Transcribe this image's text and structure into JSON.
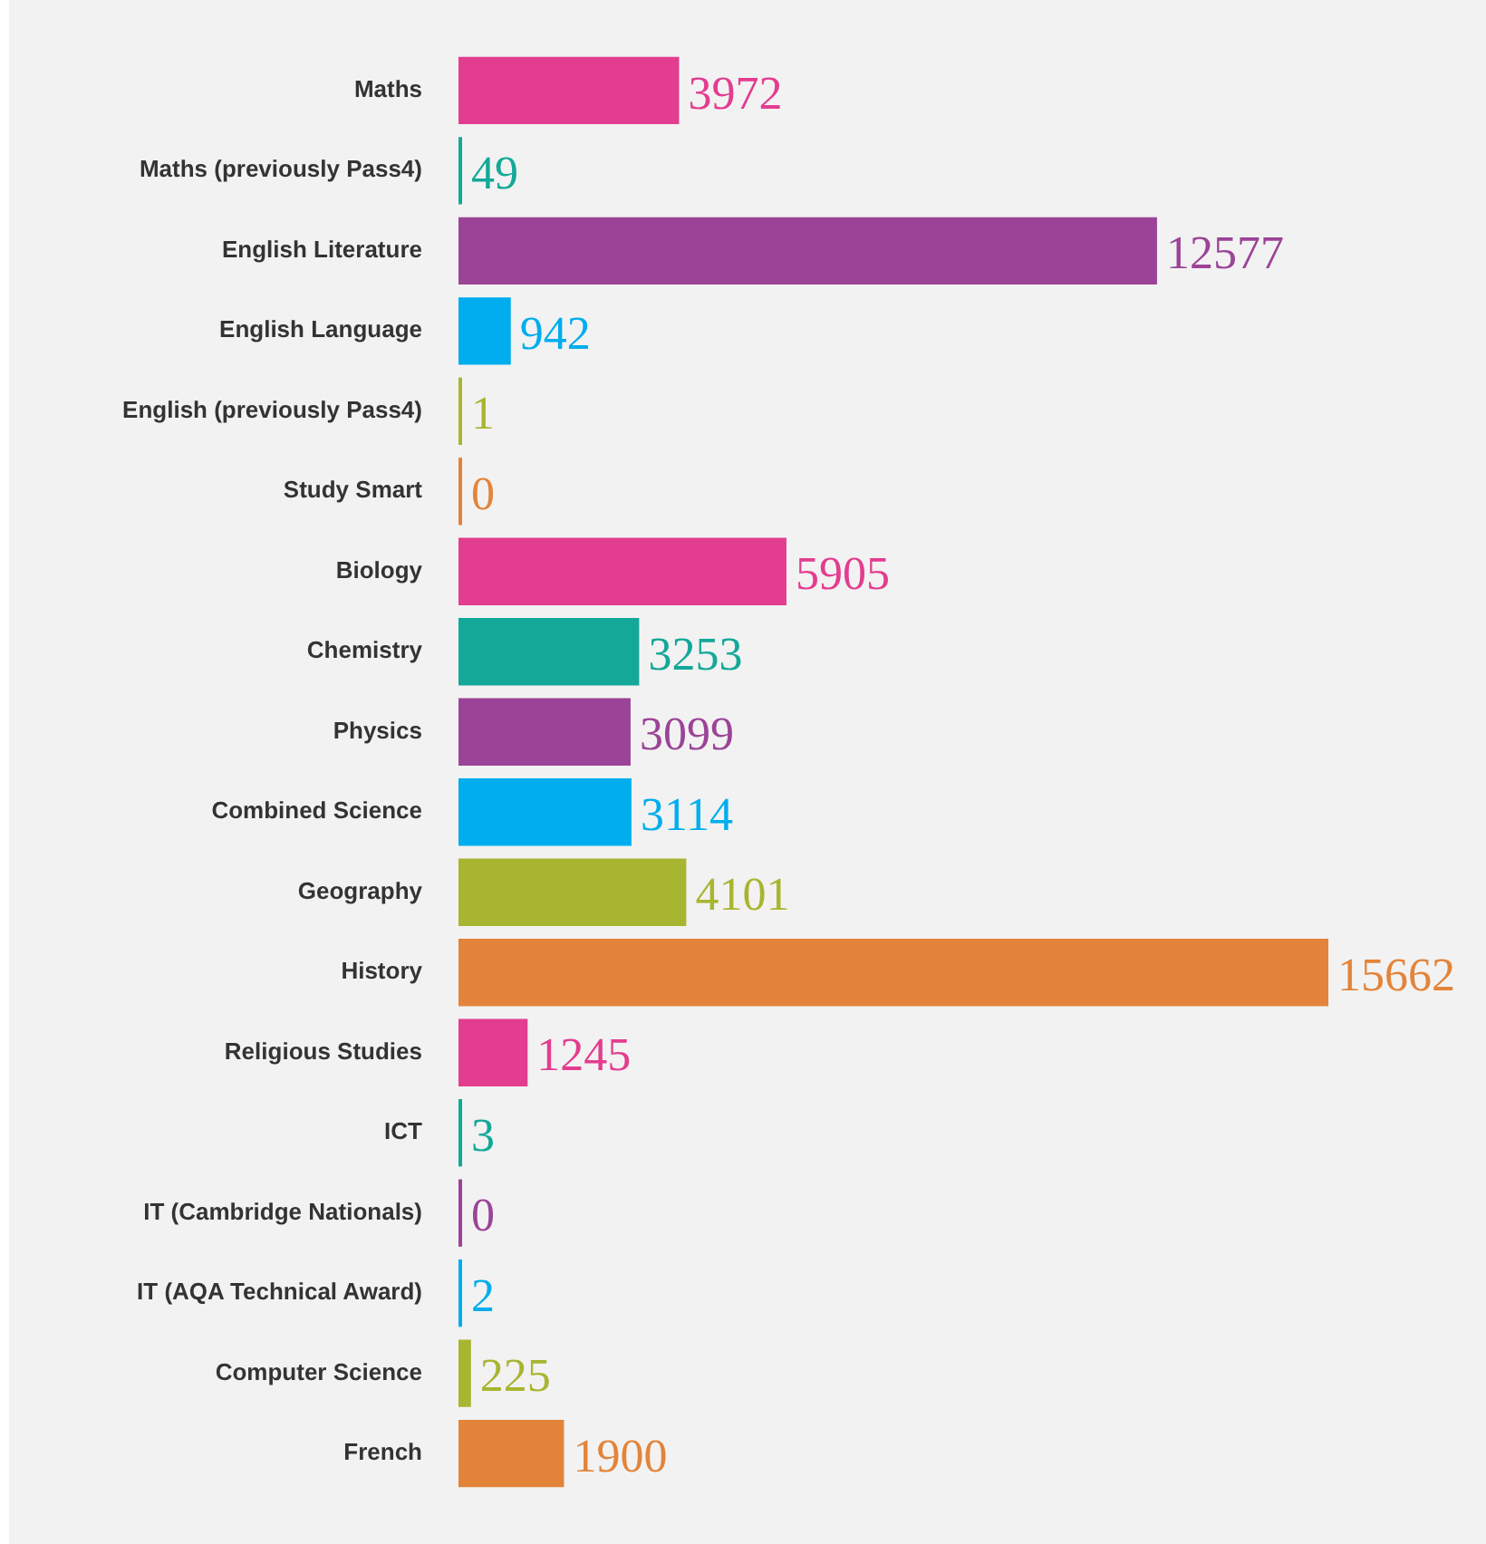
{
  "chart_data": {
    "type": "bar",
    "orientation": "horizontal",
    "data_labels": true,
    "legend": false,
    "categories": [
      "Maths",
      "Maths (previously Pass4)",
      "English Literature",
      "English Language",
      "English (previously Pass4)",
      "Study Smart",
      "Biology",
      "Chemistry",
      "Physics",
      "Combined Science",
      "Geography",
      "History",
      "Religious Studies",
      "ICT",
      "IT (Cambridge Nationals)",
      "IT (AQA Technical Award)",
      "Computer Science",
      "French"
    ],
    "values": [
      3972,
      49,
      12577,
      942,
      1,
      0,
      5905,
      3253,
      3099,
      3114,
      4101,
      15662,
      1245,
      3,
      0,
      2,
      225,
      1900
    ],
    "colors": [
      "#e33d8f",
      "#14a898",
      "#9b4497",
      "#00adee",
      "#a8b530",
      "#e3843a",
      "#e33d8f",
      "#14a898",
      "#9b4497",
      "#00adee",
      "#a8b530",
      "#e3843a",
      "#e33d8f",
      "#14a898",
      "#9b4497",
      "#00adee",
      "#a8b530",
      "#e3843a"
    ],
    "xlim": [
      0,
      18500
    ]
  }
}
